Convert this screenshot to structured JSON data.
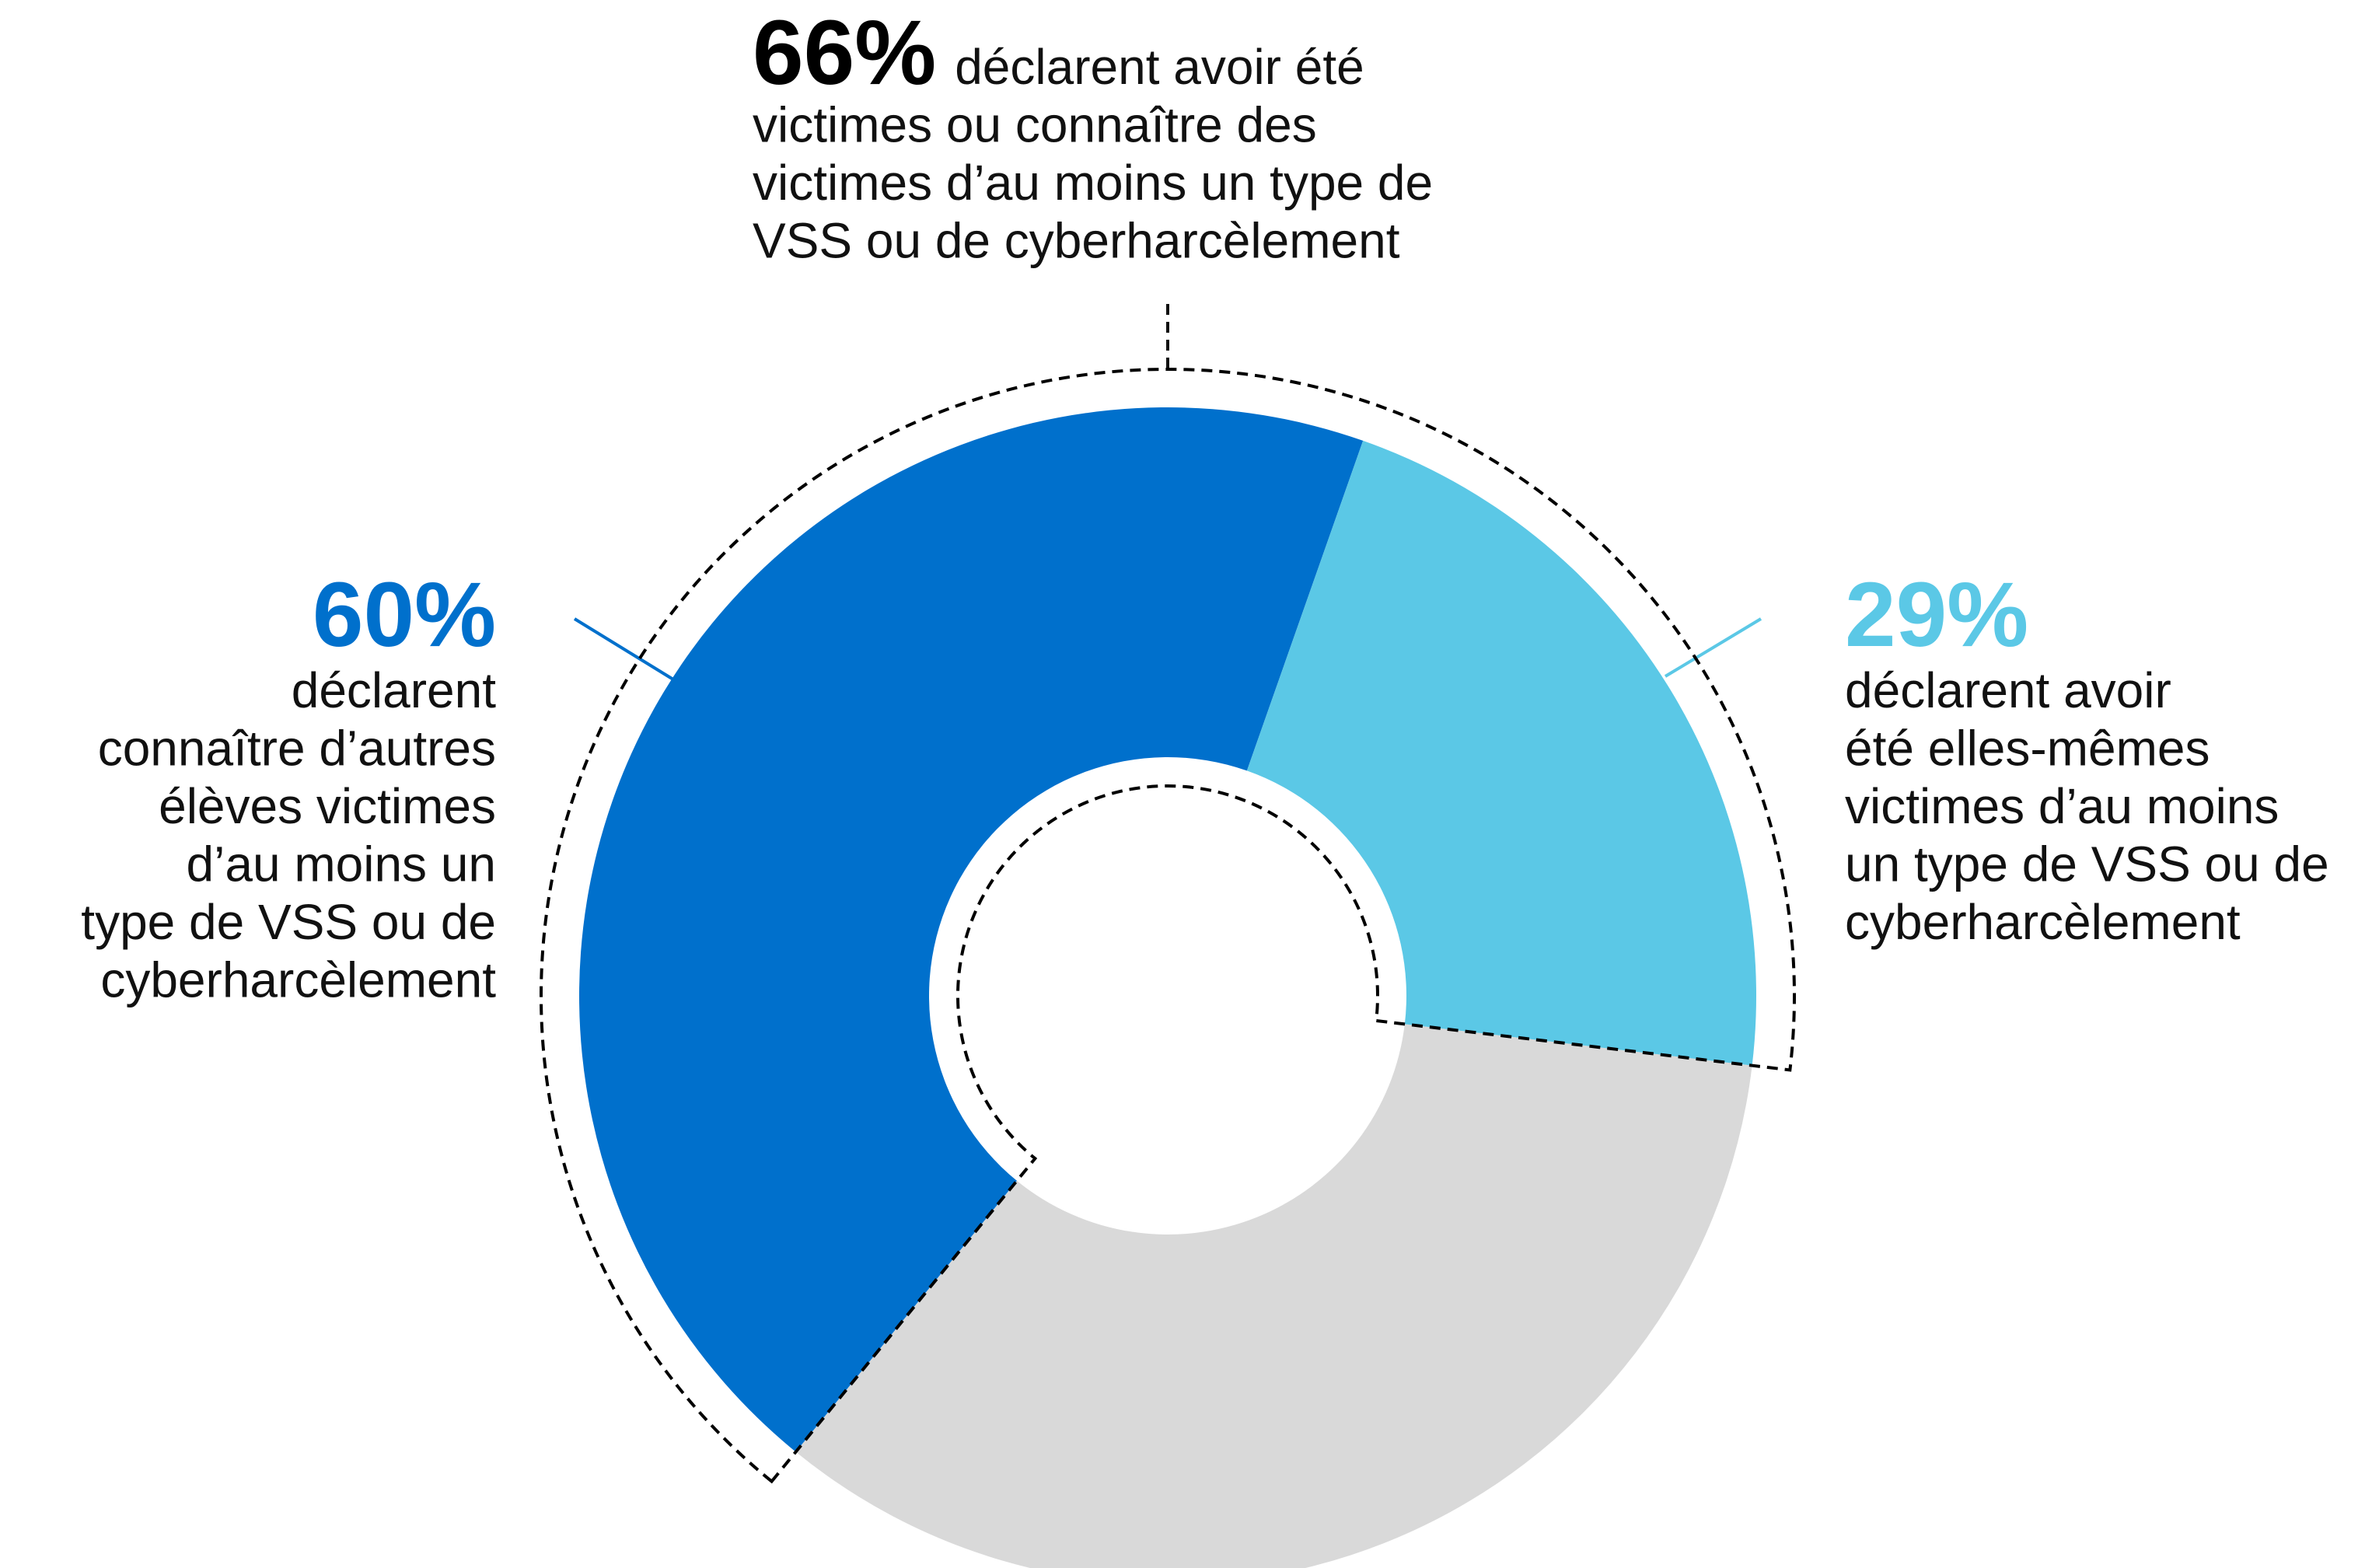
{
  "chart_data": {
    "type": "donut",
    "values": [
      60,
      29,
      66
    ],
    "value_labels": [
      "60%",
      "29%",
      "66%"
    ],
    "colors": [
      "#0070cc",
      "#5bc8e6",
      "#000000"
    ],
    "labels": [
      [
        "déclarent",
        "connaître d’autres",
        "élèves victimes",
        "d’au moins un",
        "type de VSS ou de",
        "cyberharcèlement"
      ],
      [
        "déclarent avoir",
        "été elles-mêmes",
        "victimes d’au moins",
        "un type de VSS ou de",
        "cyberharcèlement"
      ],
      [
        "déclarent avoir été",
        "victimes ou connaître des",
        "victimes d’au moins un type de",
        "VSS ou de cyberharcèlement"
      ]
    ]
  }
}
